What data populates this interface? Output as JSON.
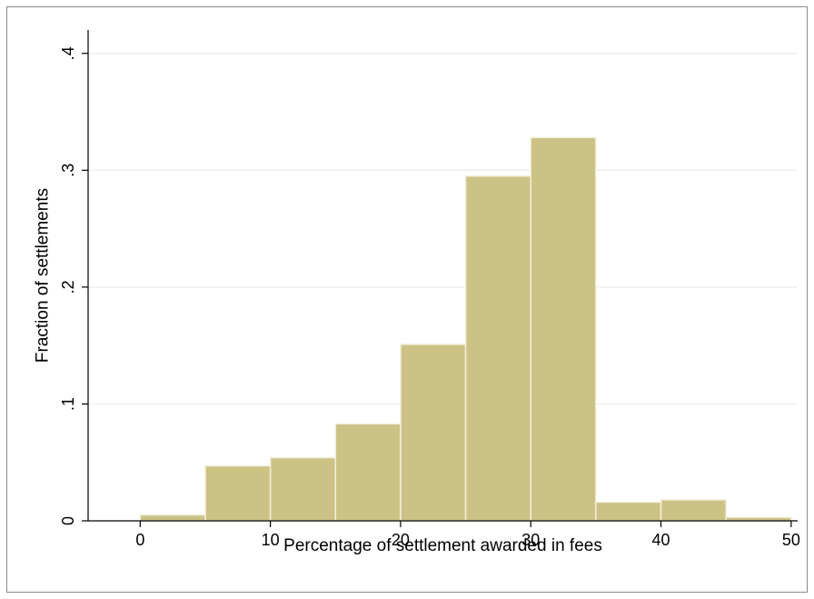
{
  "chart_data": {
    "type": "bar",
    "histogram": true,
    "bin_edges": [
      0,
      5,
      10,
      15,
      20,
      25,
      30,
      35,
      40,
      45,
      50
    ],
    "values": [
      0.005,
      0.047,
      0.054,
      0.083,
      0.151,
      0.295,
      0.328,
      0.016,
      0.018,
      0.003
    ],
    "xlabel": "Percentage of settlement awarded in fees",
    "ylabel": "Fraction of settlements",
    "xlim": [
      -4,
      50.5
    ],
    "ylim": [
      0,
      0.42
    ],
    "xticks": [
      0,
      10,
      20,
      30,
      40,
      50
    ],
    "xtick_labels": [
      "0",
      "10",
      "20",
      "30",
      "40",
      "50"
    ],
    "yticks": [
      0,
      0.1,
      0.2,
      0.3,
      0.4
    ],
    "ytick_labels": [
      "0",
      ".1",
      ".2",
      ".3",
      ".4"
    ],
    "grid": true,
    "legend": "none",
    "colors": {
      "bar_fill": "#CDC285",
      "bar_edge": "#F2EFDC",
      "gridline": "#E6EEF0",
      "axis": "#000000",
      "frame": "#8A8A8A"
    }
  }
}
